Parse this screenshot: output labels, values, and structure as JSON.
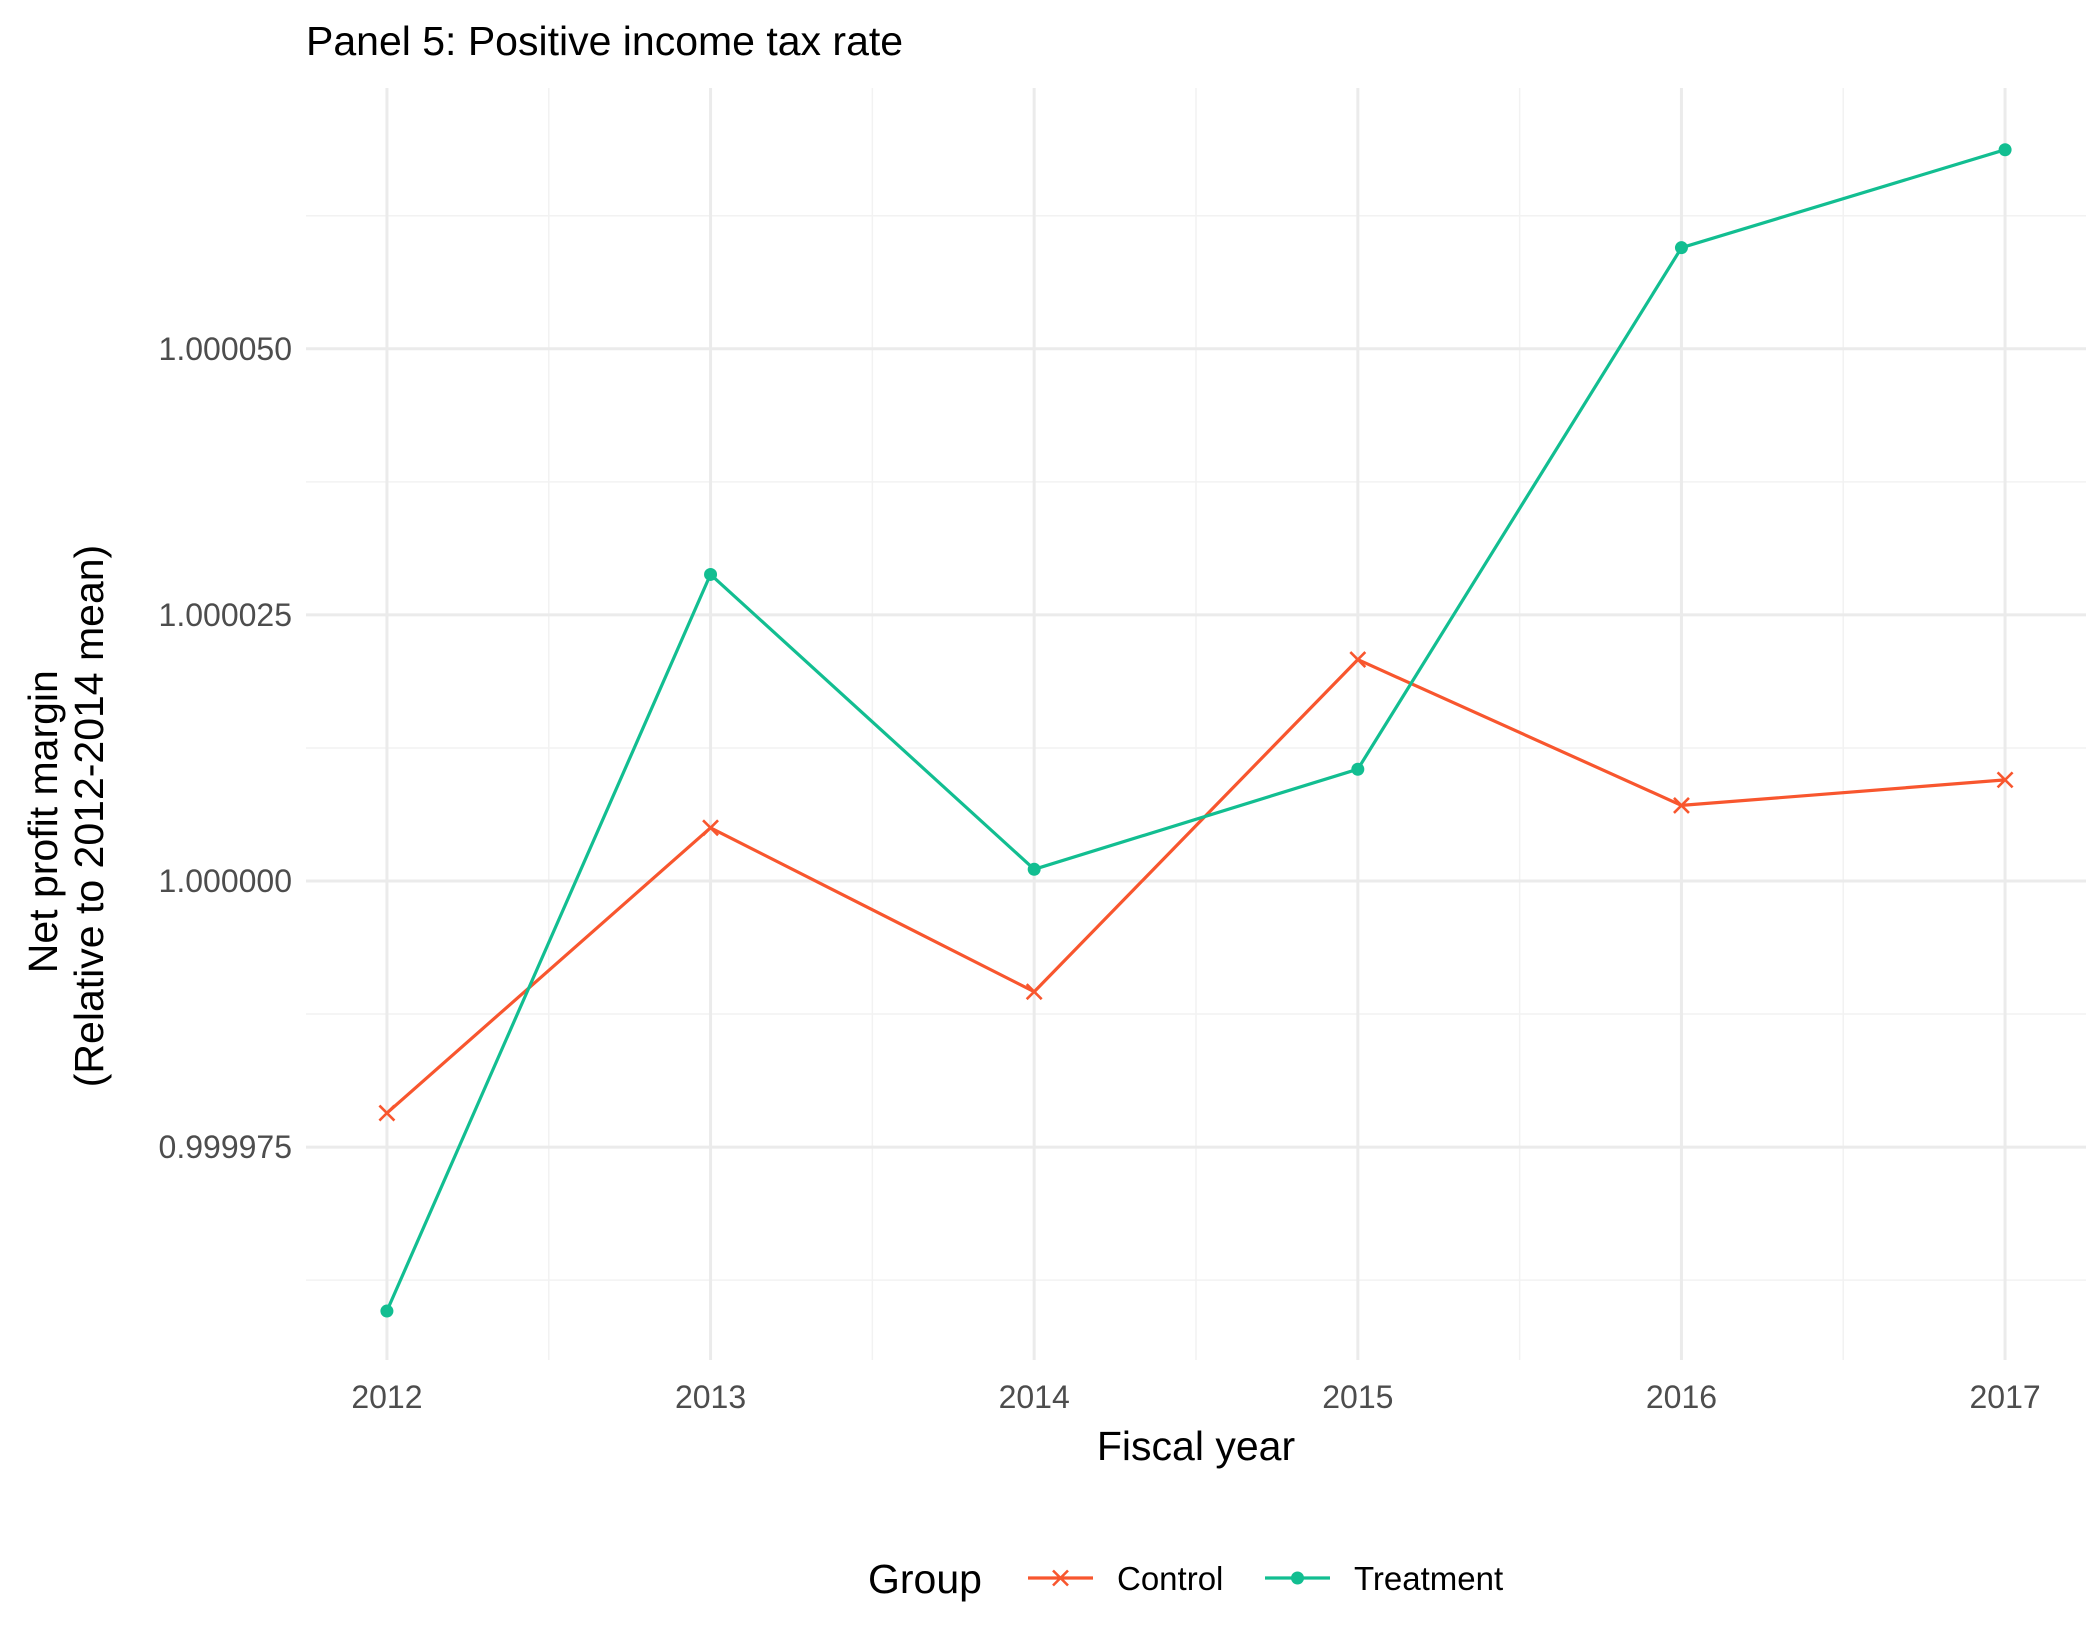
{
  "chart_data": {
    "type": "line",
    "title": "Panel 5: Positive income tax rate",
    "xlabel": "Fiscal year",
    "ylabel_lines": [
      "Net profit margin",
      "(Relative to 2012-2014 mean)"
    ],
    "x": [
      2012,
      2013,
      2014,
      2015,
      2016,
      2017
    ],
    "xlim": [
      2011.75,
      2017.25
    ],
    "ylim": [
      0.999955,
      1.0000745
    ],
    "y_ticks": [
      0.999975,
      1.0,
      1.000025,
      1.00005
    ],
    "y_tick_labels": [
      "0.999975",
      "1.000000",
      "1.000025",
      "1.000050"
    ],
    "grid": true,
    "legend": {
      "title": "Group",
      "position": "bottom"
    },
    "series": [
      {
        "name": "Control",
        "color": "#f8562e",
        "marker": "x",
        "values": [
          0.9999782,
          1.000005,
          0.9999896,
          1.0000208,
          1.0000071,
          1.0000095
        ]
      },
      {
        "name": "Treatment",
        "color": "#12be91",
        "marker": "circle",
        "values": [
          0.9999596,
          1.0000288,
          1.0000011,
          1.0000105,
          1.0000595,
          1.0000687
        ]
      }
    ]
  }
}
